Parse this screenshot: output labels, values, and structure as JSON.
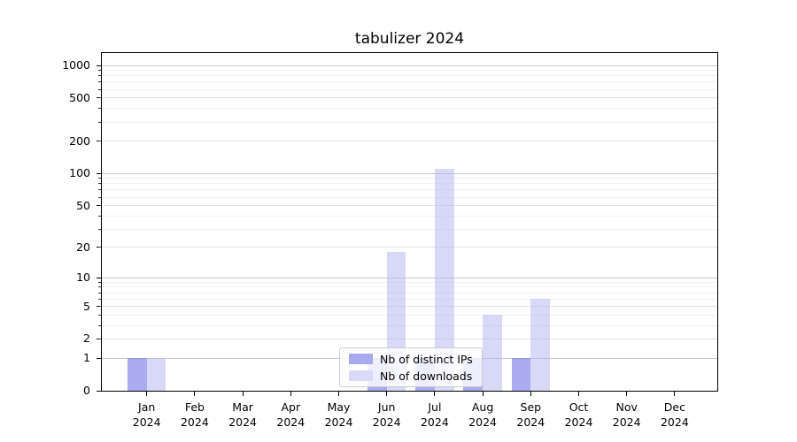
{
  "chart_data": {
    "type": "bar",
    "title": "tabulizer 2024",
    "categories": [
      "Jan 2024",
      "Feb 2024",
      "Mar 2024",
      "Apr 2024",
      "May 2024",
      "Jun 2024",
      "Jul 2024",
      "Aug 2024",
      "Sep 2024",
      "Oct 2024",
      "Nov 2024",
      "Dec 2024"
    ],
    "x": {
      "months": [
        "Jan",
        "Feb",
        "Mar",
        "Apr",
        "May",
        "Jun",
        "Jul",
        "Aug",
        "Sep",
        "Oct",
        "Nov",
        "Dec"
      ],
      "year": "2024"
    },
    "series": [
      {
        "key": "distinct-ips",
        "name": "Nb of distinct IPs",
        "color": "rgba(120,120,232,0.62)",
        "legend_color": "#a9a9f0",
        "values": [
          1,
          0,
          0,
          0,
          0,
          1,
          1,
          1,
          1,
          0,
          0,
          0
        ]
      },
      {
        "key": "downloads",
        "name": "Nb of downloads",
        "color": "rgba(178,178,240,0.5)",
        "legend_color": "#d9d9f8",
        "values": [
          1,
          0,
          0,
          0,
          0,
          18,
          110,
          4,
          6,
          0,
          0,
          0
        ]
      }
    ],
    "y_axis": {
      "scale": "log10(1+x)",
      "ticks": [
        0,
        1,
        2,
        5,
        10,
        20,
        50,
        100,
        200,
        500,
        1000
      ],
      "decade_grid": [
        1,
        10,
        100,
        1000
      ],
      "mid_grid": [
        2,
        5,
        20,
        50,
        200,
        500
      ],
      "minor_grid": [
        3,
        4,
        6,
        7,
        8,
        9,
        30,
        40,
        60,
        70,
        80,
        90,
        300,
        400,
        600,
        700,
        800,
        900
      ],
      "ylim": [
        0,
        1300
      ]
    },
    "legend": {
      "position": "lower center"
    },
    "grid": true
  },
  "colors": {
    "background": "#ffffff",
    "axis": "#000000",
    "text": "#000000",
    "grid_decade": "#c8c8c8",
    "grid_mid": "#e2e2e2",
    "grid_minor": "#f1f1f1",
    "legend_border": "#cccccc",
    "legend_bg": "rgba(255,255,255,0.8)"
  }
}
